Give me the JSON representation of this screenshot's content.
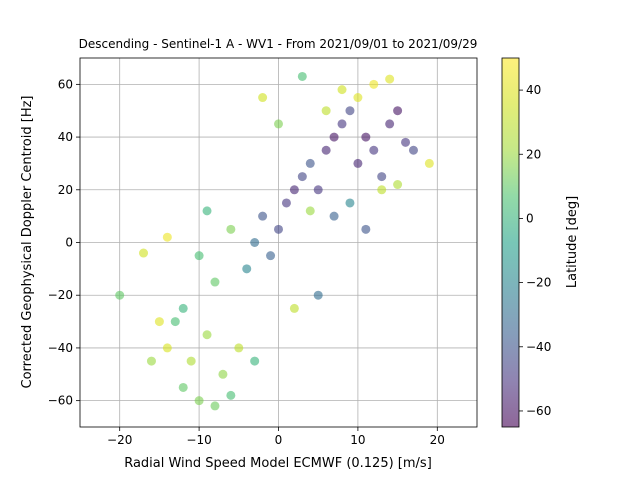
{
  "chart_data": {
    "type": "scatter",
    "title": "Descending - Sentinel-1 A - WV1 - From 2021/09/01 to 2021/09/29",
    "xlabel": "Radial Wind Speed Model ECMWF (0.125) [m/s]",
    "ylabel": "Corrected Geophysical Doppler Centroid [Hz]",
    "xlim": [
      -25,
      25
    ],
    "ylim": [
      -70,
      70
    ],
    "xticks": [
      -20,
      -10,
      0,
      10,
      20
    ],
    "yticks": [
      -60,
      -40,
      -20,
      0,
      20,
      40,
      60
    ],
    "grid": true,
    "colorbar": {
      "label": "Latitude [deg]",
      "range": [
        -65,
        50
      ],
      "ticks": [
        -60,
        -40,
        -20,
        0,
        20,
        40
      ],
      "colormap": "viridis",
      "alpha": 0.6
    },
    "points": [
      [
        -10,
        -5,
        5
      ],
      [
        -8,
        -15,
        10
      ],
      [
        -12,
        -25,
        0
      ],
      [
        -6,
        5,
        15
      ],
      [
        -9,
        -35,
        20
      ],
      [
        -11,
        -45,
        25
      ],
      [
        -7,
        -50,
        18
      ],
      [
        -5,
        -40,
        30
      ],
      [
        -13,
        -30,
        5
      ],
      [
        -4,
        -10,
        -20
      ],
      [
        -3,
        0,
        -30
      ],
      [
        -2,
        10,
        -40
      ],
      [
        -1,
        -5,
        -35
      ],
      [
        0,
        5,
        -45
      ],
      [
        1,
        15,
        -50
      ],
      [
        2,
        20,
        -55
      ],
      [
        3,
        25,
        -45
      ],
      [
        4,
        30,
        -40
      ],
      [
        5,
        20,
        -50
      ],
      [
        6,
        35,
        -55
      ],
      [
        7,
        40,
        -60
      ],
      [
        8,
        45,
        -50
      ],
      [
        9,
        50,
        -45
      ],
      [
        10,
        30,
        -55
      ],
      [
        11,
        40,
        -60
      ],
      [
        12,
        35,
        -50
      ],
      [
        13,
        25,
        -45
      ],
      [
        14,
        45,
        -55
      ],
      [
        15,
        50,
        -60
      ],
      [
        16,
        38,
        -50
      ],
      [
        10,
        55,
        40
      ],
      [
        12,
        60,
        45
      ],
      [
        8,
        58,
        35
      ],
      [
        14,
        62,
        40
      ],
      [
        6,
        50,
        30
      ],
      [
        -17,
        -4,
        35
      ],
      [
        -15,
        -30,
        40
      ],
      [
        -14,
        -40,
        38
      ],
      [
        -16,
        -45,
        20
      ],
      [
        -12,
        -55,
        10
      ],
      [
        -10,
        -60,
        15
      ],
      [
        -8,
        -62,
        12
      ],
      [
        -6,
        -58,
        5
      ],
      [
        -3,
        -45,
        0
      ],
      [
        -20,
        -20,
        10
      ],
      [
        -14,
        2,
        45
      ],
      [
        3,
        63,
        5
      ],
      [
        5,
        -20,
        -30
      ],
      [
        2,
        -25,
        30
      ],
      [
        7,
        10,
        -35
      ],
      [
        9,
        15,
        -20
      ],
      [
        11,
        5,
        -40
      ],
      [
        13,
        20,
        30
      ],
      [
        15,
        22,
        25
      ],
      [
        17,
        35,
        -45
      ],
      [
        19,
        30,
        40
      ],
      [
        -2,
        55,
        35
      ],
      [
        0,
        45,
        15
      ],
      [
        4,
        12,
        20
      ],
      [
        -9,
        12,
        0
      ]
    ]
  }
}
